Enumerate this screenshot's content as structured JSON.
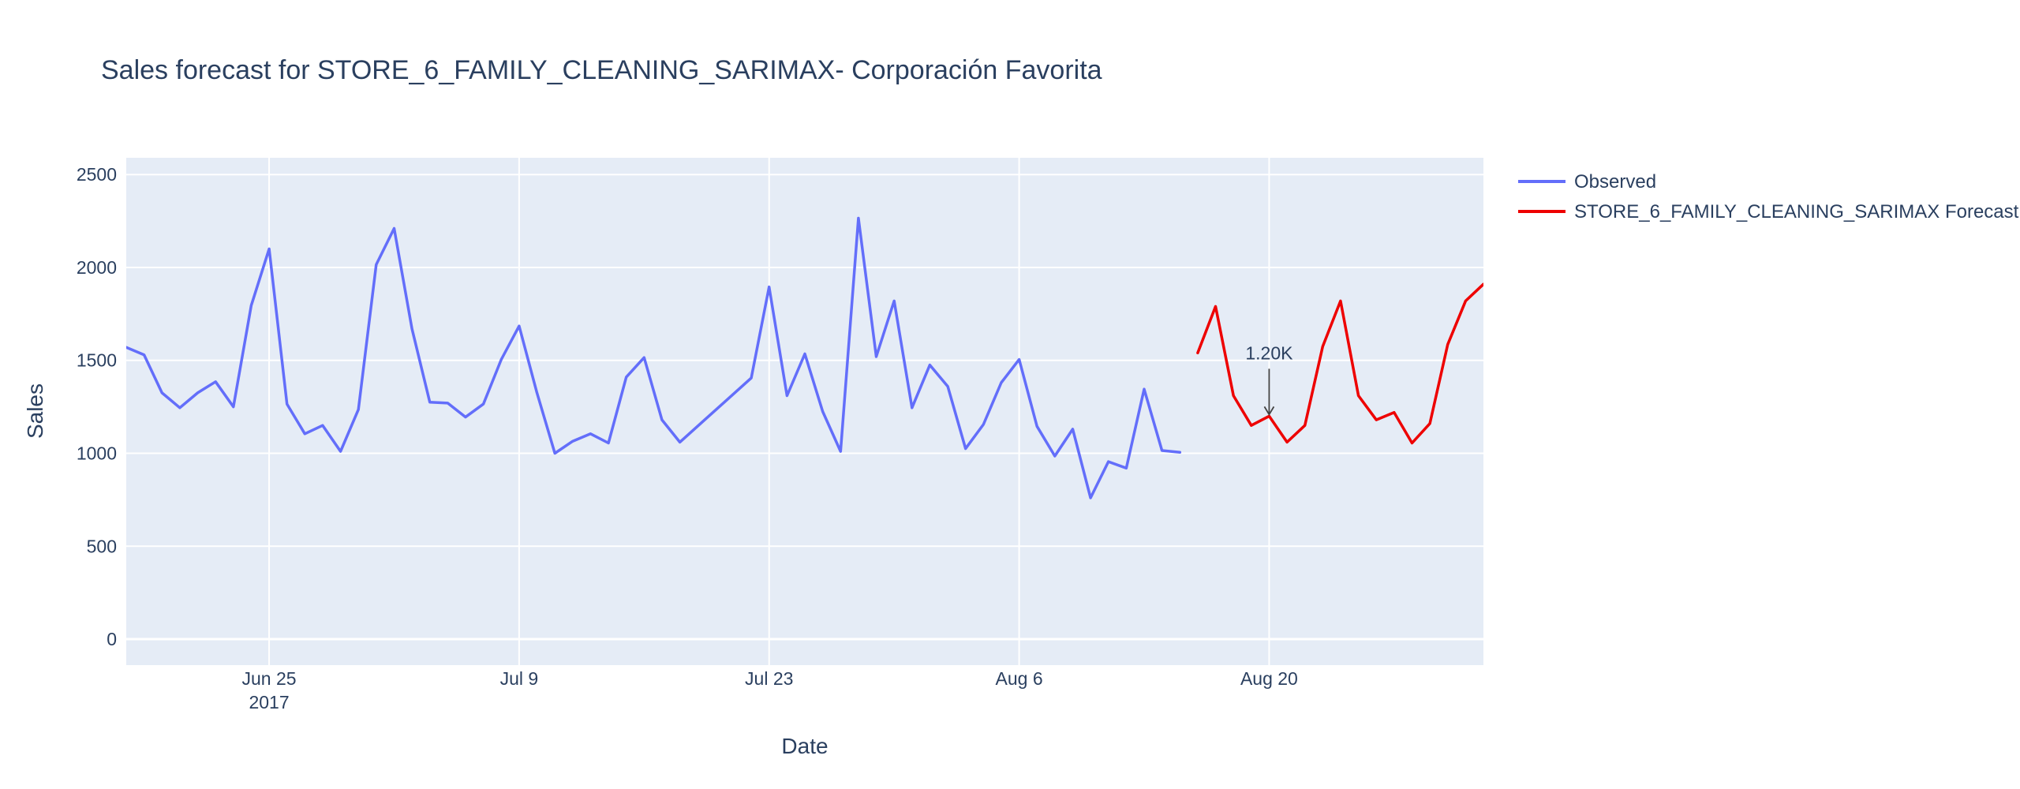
{
  "chart_data": {
    "type": "line",
    "title": "Sales forecast for STORE_6_FAMILY_CLEANING_SARIMAX- Corporación Favorita",
    "xlabel": "Date",
    "ylabel": "Sales",
    "ylim": [
      -140,
      2590
    ],
    "yticks": [
      0,
      500,
      1000,
      1500,
      2000,
      2500
    ],
    "xlim": [
      "2017-06-17",
      "2017-09-01"
    ],
    "xticks": [
      {
        "date": "2017-06-25",
        "label": "Jun 25",
        "sublabel": "2017"
      },
      {
        "date": "2017-07-09",
        "label": "Jul 9",
        "sublabel": ""
      },
      {
        "date": "2017-07-23",
        "label": "Jul 23",
        "sublabel": ""
      },
      {
        "date": "2017-08-06",
        "label": "Aug 6",
        "sublabel": ""
      },
      {
        "date": "2017-08-20",
        "label": "Aug 20",
        "sublabel": ""
      }
    ],
    "grid": true,
    "legend_position": "top-right-outside",
    "series": [
      {
        "name": "Observed",
        "color": "#636efa",
        "x": [
          "2017-06-17",
          "2017-06-18",
          "2017-06-19",
          "2017-06-20",
          "2017-06-21",
          "2017-06-22",
          "2017-06-23",
          "2017-06-24",
          "2017-06-25",
          "2017-06-26",
          "2017-06-27",
          "2017-06-28",
          "2017-06-29",
          "2017-06-30",
          "2017-07-01",
          "2017-07-02",
          "2017-07-03",
          "2017-07-04",
          "2017-07-05",
          "2017-07-06",
          "2017-07-07",
          "2017-07-08",
          "2017-07-09",
          "2017-07-10",
          "2017-07-11",
          "2017-07-12",
          "2017-07-13",
          "2017-07-14",
          "2017-07-15",
          "2017-07-16",
          "2017-07-17",
          "2017-07-18",
          "2017-07-22",
          "2017-07-23",
          "2017-07-24",
          "2017-07-25",
          "2017-07-26",
          "2017-07-27",
          "2017-07-28",
          "2017-07-29",
          "2017-07-30",
          "2017-07-31",
          "2017-08-01",
          "2017-08-02",
          "2017-08-03",
          "2017-08-04",
          "2017-08-05",
          "2017-08-06",
          "2017-08-07",
          "2017-08-08",
          "2017-08-09",
          "2017-08-10",
          "2017-08-11",
          "2017-08-12",
          "2017-08-13",
          "2017-08-14",
          "2017-08-15"
        ],
        "values": [
          1570,
          1530,
          1325,
          1245,
          1325,
          1385,
          1250,
          1795,
          2100,
          1265,
          1105,
          1150,
          1010,
          1235,
          2015,
          2210,
          1670,
          1275,
          1270,
          1195,
          1265,
          1505,
          1685,
          1325,
          1000,
          1065,
          1105,
          1055,
          1410,
          1515,
          1180,
          1060,
          1405,
          1895,
          1310,
          1535,
          1225,
          1010,
          2265,
          1520,
          1820,
          1245,
          1475,
          1360,
          1025,
          1155,
          1380,
          1505,
          1145,
          985,
          1130,
          760,
          955,
          920,
          1345,
          1015,
          1005
        ]
      },
      {
        "name": "STORE_6_FAMILY_CLEANING_SARIMAX Forecast",
        "color": "#ee0000",
        "x": [
          "2017-08-16",
          "2017-08-17",
          "2017-08-18",
          "2017-08-19",
          "2017-08-20",
          "2017-08-21",
          "2017-08-22",
          "2017-08-23",
          "2017-08-24",
          "2017-08-25",
          "2017-08-26",
          "2017-08-27",
          "2017-08-28",
          "2017-08-29",
          "2017-08-30",
          "2017-08-31",
          "2017-09-01"
        ],
        "values": [
          1540,
          1790,
          1310,
          1150,
          1200,
          1060,
          1150,
          1575,
          1820,
          1310,
          1180,
          1220,
          1055,
          1160,
          1585,
          1820,
          1910
        ]
      }
    ],
    "annotations": [
      {
        "date": "2017-08-20",
        "y": 1200,
        "text": "1.20K"
      }
    ]
  }
}
